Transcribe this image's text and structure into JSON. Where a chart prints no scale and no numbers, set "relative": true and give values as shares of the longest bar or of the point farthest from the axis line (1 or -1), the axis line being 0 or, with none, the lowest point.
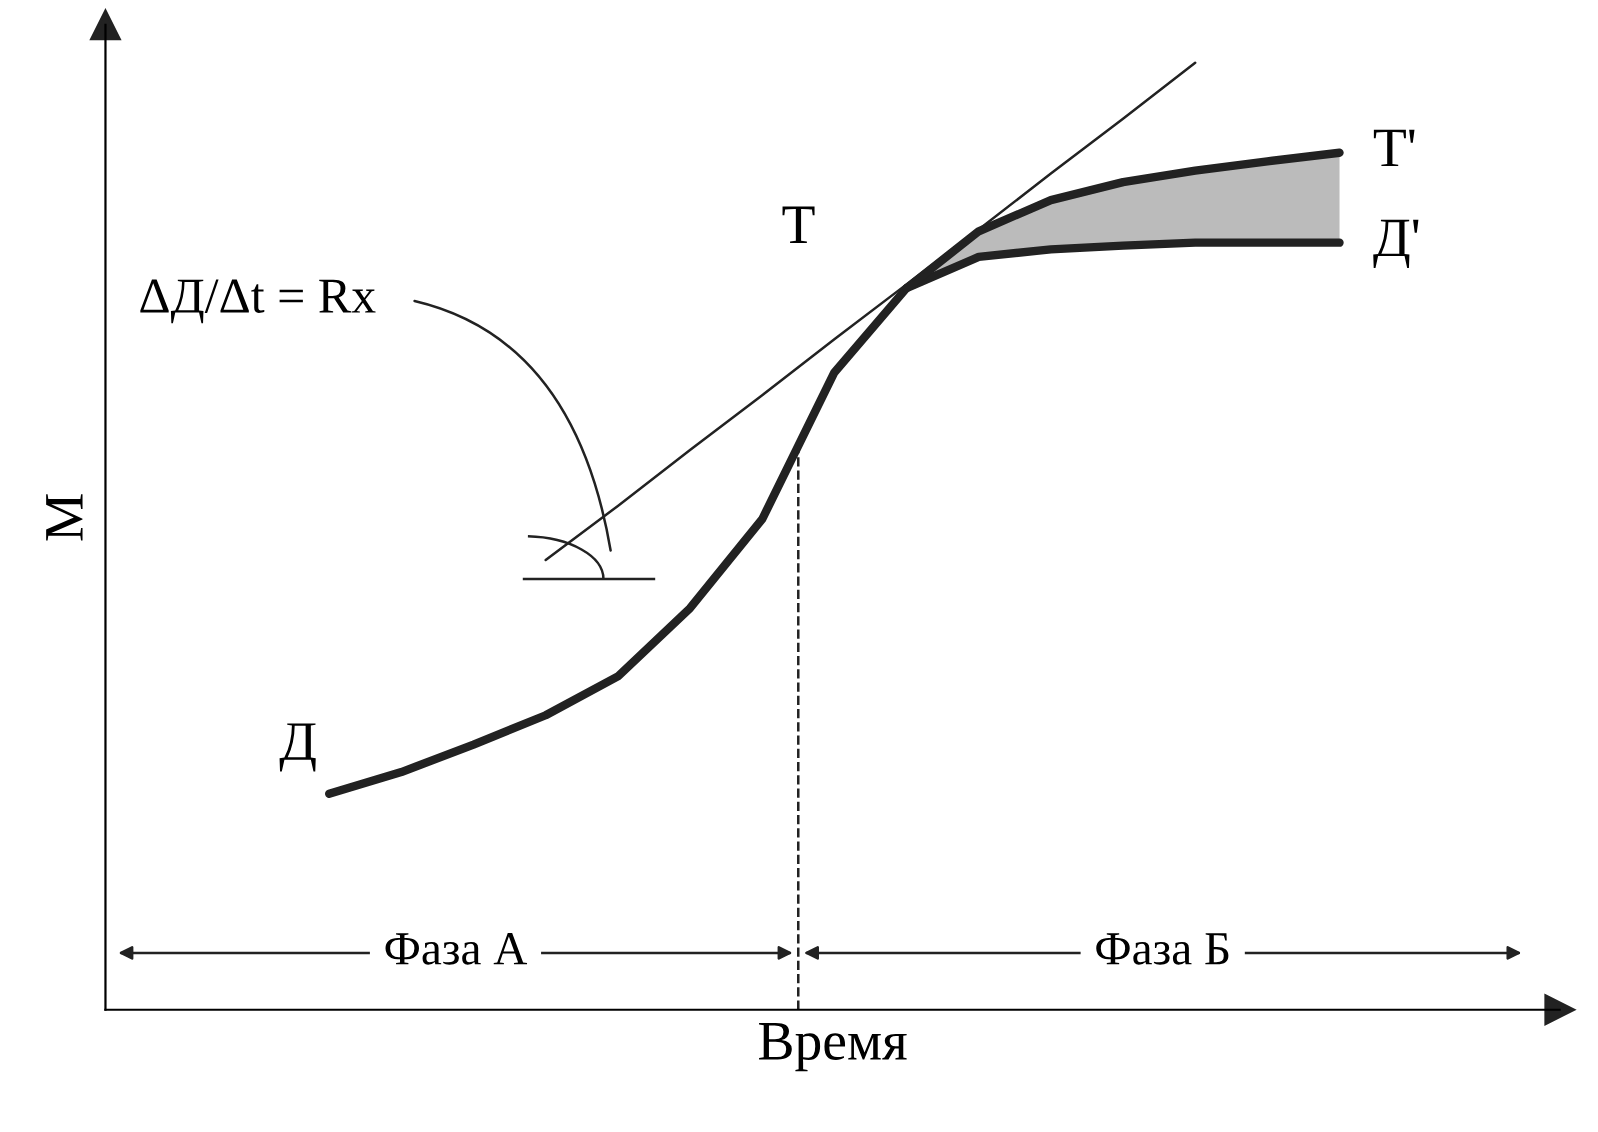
{
  "chart_data": {
    "type": "line",
    "relative": true,
    "xlabel": "Время",
    "ylabel": "М",
    "categories": [
      null,
      null,
      null,
      null,
      null,
      null,
      null,
      null,
      null,
      null,
      null,
      null,
      null,
      null,
      null
    ],
    "series": [
      {
        "color": "#222222",
        "values": [
          0.228,
          0.251,
          0.28,
          0.311,
          0.352,
          0.424,
          0.518,
          0.673,
          0.762,
          0.795,
          0.803,
          0.807,
          0.81,
          0.81,
          0.81
        ]
      },
      {
        "color": "#222222",
        "values": [
          null,
          null,
          null,
          null,
          null,
          null,
          null,
          null,
          0.762,
          0.822,
          0.855,
          0.874,
          0.886,
          0.896,
          0.905
        ]
      },
      {
        "color": "#222222",
        "values": [
          null,
          null,
          null,
          0.475,
          0.532,
          0.591,
          0.649,
          0.708,
          0.766,
          0.824,
          0.883,
          0.941,
          1.0,
          null,
          null
        ]
      }
    ],
    "annotations": [
      "Д",
      "Д'",
      "Т",
      "Т'",
      "ΔД/Δt = Rx",
      "Фаза А",
      "Фаза Б"
    ]
  }
}
